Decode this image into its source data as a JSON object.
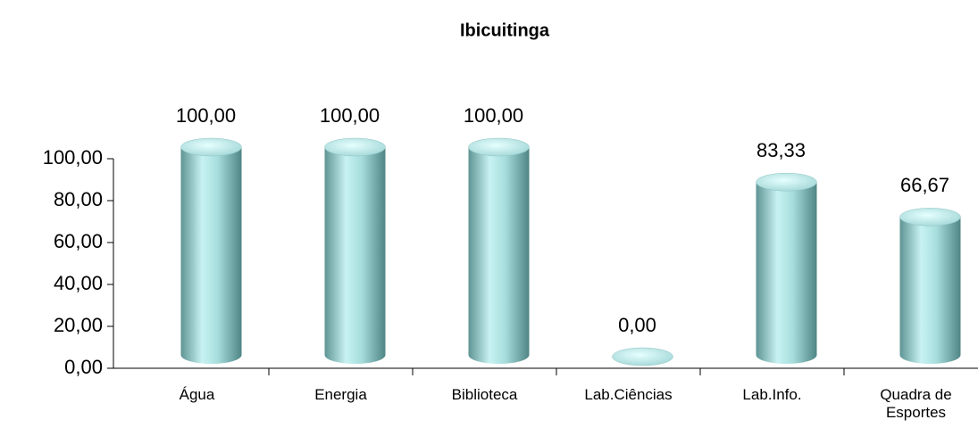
{
  "chart_data": {
    "type": "bar",
    "title": "Ibicuitinga",
    "categories": [
      "Água",
      "Energia",
      "Biblioteca",
      "Lab.Ciências",
      "Lab.Info.",
      "Quadra de Esportes"
    ],
    "values": [
      100,
      100,
      100,
      0,
      83.33,
      66.67
    ],
    "value_labels": [
      "100,00",
      "100,00",
      "100,00",
      "0,00",
      "83,33",
      "66,67"
    ],
    "color": "#9fd4d4",
    "ylim": [
      0,
      100
    ],
    "yticks": [
      {
        "value": 0,
        "label": "0,00"
      },
      {
        "value": 20,
        "label": "20,00"
      },
      {
        "value": 40,
        "label": "40,00"
      },
      {
        "value": 60,
        "label": "60,00"
      },
      {
        "value": 80,
        "label": "80,00"
      },
      {
        "value": 100,
        "label": "100,00"
      }
    ],
    "grid": false
  }
}
